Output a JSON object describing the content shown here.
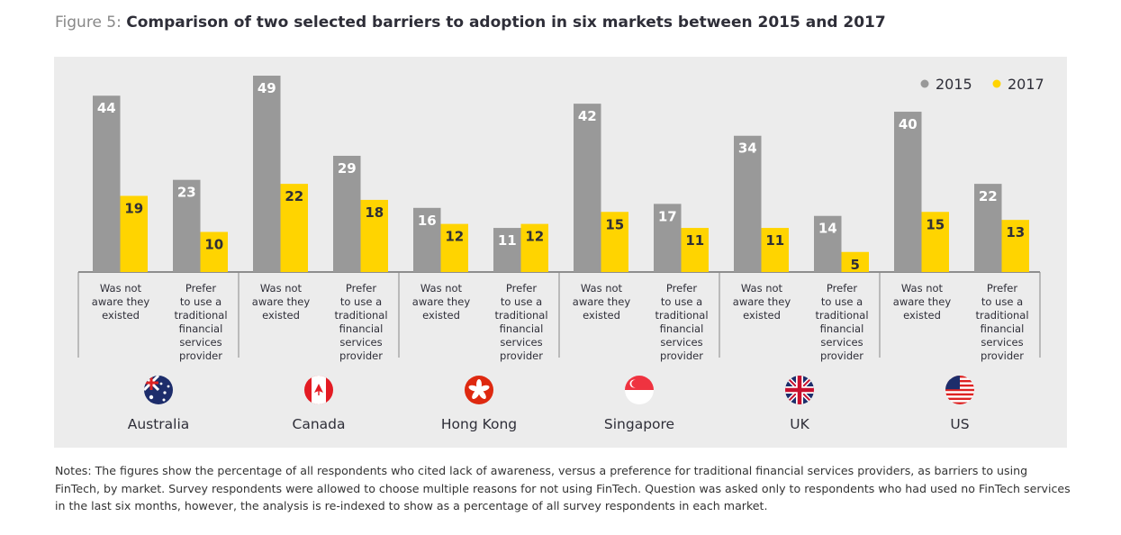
{
  "title": {
    "prefix": "Figure 5:",
    "text": "Comparison of two selected barriers to adoption in six markets between 2015 and 2017"
  },
  "chart_data": {
    "type": "bar",
    "groups": [
      "Australia",
      "Canada",
      "Hong Kong",
      "Singapore",
      "UK",
      "US"
    ],
    "subcategories": [
      "Was not aware they existed",
      "Prefer to use a traditional financial services provider"
    ],
    "subcategory_lines": [
      [
        "Was not",
        "aware they",
        "existed"
      ],
      [
        "Prefer",
        "to use a",
        "traditional",
        "financial",
        "services",
        "provider"
      ]
    ],
    "series": [
      {
        "name": "2015",
        "color": "#999999",
        "values": [
          [
            44,
            23
          ],
          [
            49,
            29
          ],
          [
            16,
            11
          ],
          [
            42,
            17
          ],
          [
            34,
            14
          ],
          [
            40,
            22
          ]
        ]
      },
      {
        "name": "2017",
        "color": "#ffd400",
        "values": [
          [
            19,
            10
          ],
          [
            22,
            18
          ],
          [
            12,
            12
          ],
          [
            15,
            11
          ],
          [
            11,
            5
          ],
          [
            15,
            13
          ]
        ]
      }
    ],
    "ylim": [
      0,
      50
    ],
    "legend": "top-right",
    "grid": false,
    "data_labels": true,
    "group_icons": [
      "australia-flag-icon",
      "canada-flag-icon",
      "hong-kong-flag-icon",
      "singapore-flag-icon",
      "uk-flag-icon",
      "us-flag-icon"
    ]
  },
  "notes": "Notes: The figures show the percentage of all respondents who cited lack of awareness, versus a preference for traditional financial services providers, as barriers to using FinTech, by market. Survey respondents were allowed to choose multiple reasons for not using FinTech. Question was asked only to respondents who had used no FinTech services in the last six months, however, the analysis is re-indexed to show as a percentage of all survey respondents in each market."
}
